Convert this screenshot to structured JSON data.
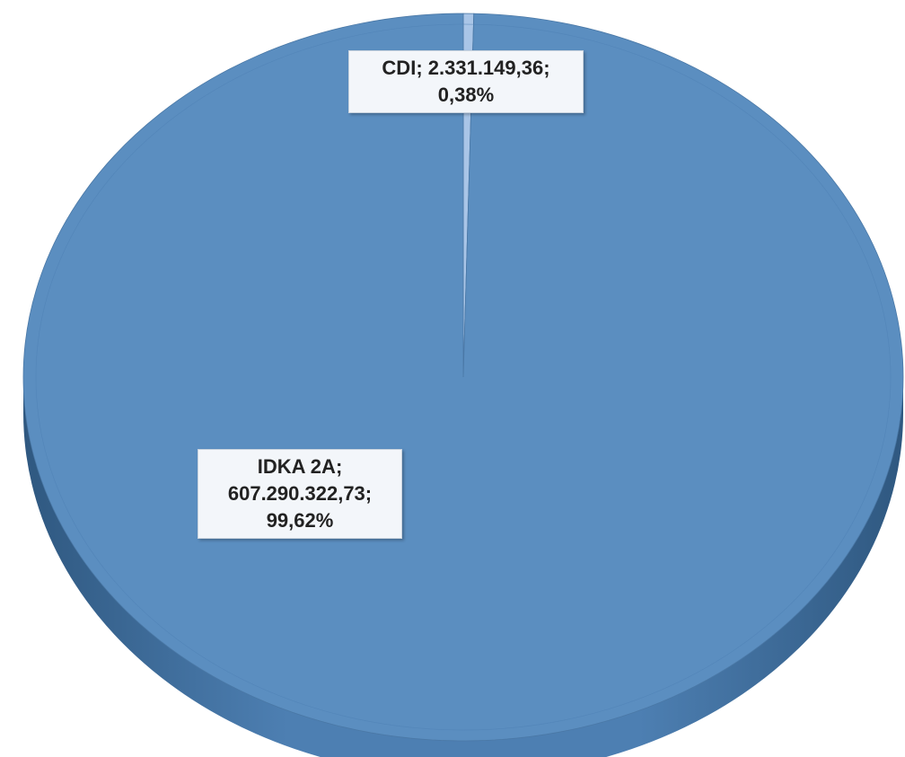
{
  "chart_data": {
    "type": "pie3d",
    "categories": [
      "CDI",
      "IDKA 2A"
    ],
    "values": [
      2331149.36,
      607290322.73
    ],
    "value_labels": [
      "2.331.149,36",
      "607.290.322,73"
    ],
    "percent_labels": [
      "0,38%",
      "99,62%"
    ],
    "label_separator": ";",
    "colors": [
      "#a9c5e7",
      "#5b8ec0"
    ]
  }
}
